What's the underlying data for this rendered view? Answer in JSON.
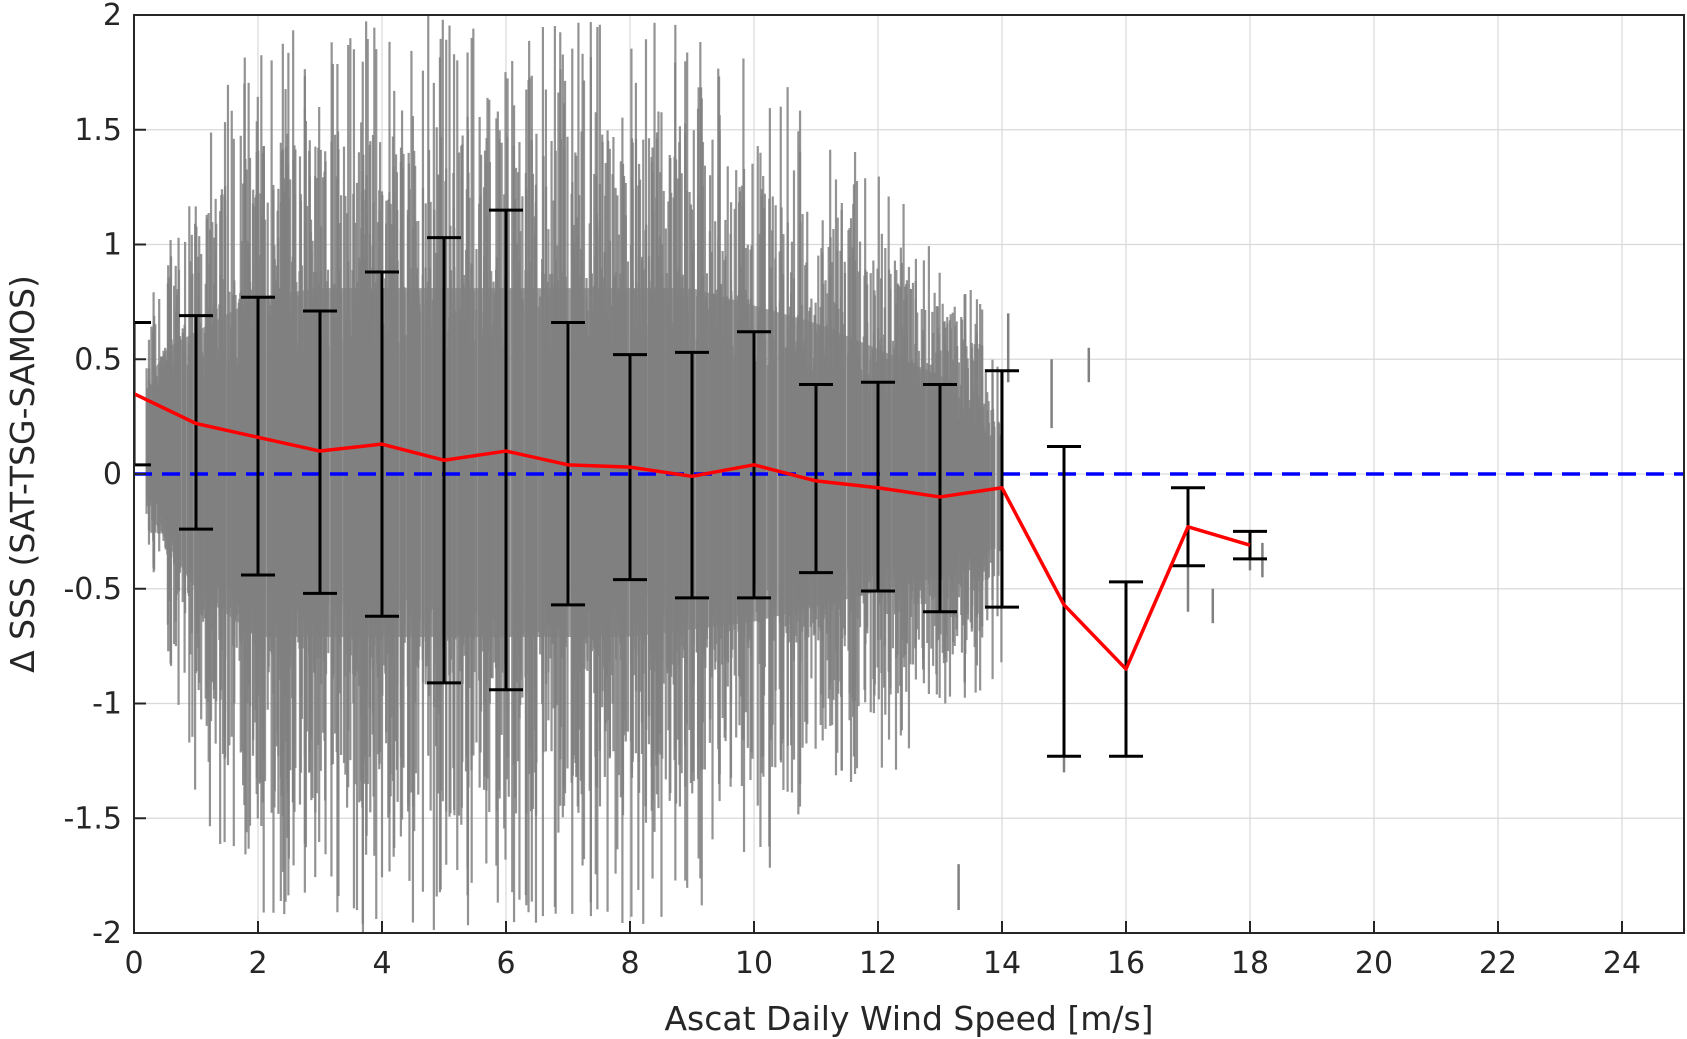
{
  "chart_data": {
    "type": "scatter",
    "title": "",
    "xlabel": "Ascat Daily Wind Speed [m/s]",
    "ylabel": "Δ SSS (SAT-TSG-SAMOS)",
    "xlim": [
      0,
      25
    ],
    "ylim": [
      -2,
      2
    ],
    "xticks": [
      0,
      2,
      4,
      6,
      8,
      10,
      12,
      14,
      16,
      18,
      20,
      22,
      24
    ],
    "yticks": [
      2,
      1.5,
      1,
      0.5,
      0,
      -0.5,
      -1,
      -1.5,
      -2
    ],
    "grid": true,
    "colors": {
      "scatter": "#808080",
      "mean_line": "#ff0000",
      "zero_line": "#0000ff",
      "error_bars": "#000000",
      "grid": "#d9d9d9",
      "axes": "#262626"
    },
    "scatter_envelope": [
      {
        "x": 0.2,
        "low": -0.3,
        "high": 0.9
      },
      {
        "x": 0.5,
        "low": -0.7,
        "high": 1.3
      },
      {
        "x": 1,
        "low": -1.4,
        "high": 1.5
      },
      {
        "x": 2,
        "low": -2.0,
        "high": 1.9
      },
      {
        "x": 3,
        "low": -2.0,
        "high": 2.0
      },
      {
        "x": 4,
        "low": -2.0,
        "high": 2.0
      },
      {
        "x": 5,
        "low": -2.0,
        "high": 2.0
      },
      {
        "x": 6,
        "low": -2.0,
        "high": 2.0
      },
      {
        "x": 7,
        "low": -2.0,
        "high": 2.0
      },
      {
        "x": 8,
        "low": -2.0,
        "high": 2.0
      },
      {
        "x": 9,
        "low": -1.9,
        "high": 2.0
      },
      {
        "x": 10,
        "low": -1.8,
        "high": 1.8
      },
      {
        "x": 11,
        "low": -1.6,
        "high": 1.6
      },
      {
        "x": 12,
        "low": -1.4,
        "high": 1.3
      },
      {
        "x": 13,
        "low": -1.2,
        "high": 1.0
      },
      {
        "x": 13.5,
        "low": -1.1,
        "high": 0.8
      },
      {
        "x": 14,
        "low": -1.0,
        "high": 0.6
      }
    ],
    "scatter_outliers": [
      {
        "x": 14.1,
        "low": 0.4,
        "high": 0.7
      },
      {
        "x": 14.8,
        "low": 0.2,
        "high": 0.5
      },
      {
        "x": 15,
        "low": -1.3,
        "high": 0.1
      },
      {
        "x": 15.4,
        "low": 0.4,
        "high": 0.55
      },
      {
        "x": 16,
        "low": -1.2,
        "high": -0.5
      },
      {
        "x": 17,
        "low": -0.6,
        "high": -0.1
      },
      {
        "x": 17.4,
        "low": -0.65,
        "high": -0.5
      },
      {
        "x": 18,
        "low": -0.42,
        "high": -0.28
      },
      {
        "x": 18.2,
        "low": -0.45,
        "high": -0.3
      },
      {
        "x": 13.3,
        "low": -1.9,
        "high": -1.7
      }
    ],
    "series": [
      {
        "type": "line",
        "x": [
          0,
          1,
          2,
          3,
          4,
          5,
          6,
          7,
          8,
          9,
          10,
          11,
          12,
          13,
          14,
          15,
          16,
          17,
          18
        ],
        "values": [
          0.35,
          0.22,
          0.16,
          0.1,
          0.13,
          0.06,
          0.1,
          0.04,
          0.03,
          -0.01,
          0.04,
          -0.03,
          -0.06,
          -0.1,
          -0.06,
          -0.57,
          -0.85,
          -0.23,
          -0.31
        ]
      },
      {
        "type": "errorbar",
        "x": [
          0,
          1,
          2,
          3,
          4,
          5,
          6,
          7,
          8,
          9,
          10,
          11,
          12,
          13,
          14,
          15,
          16,
          17,
          18
        ],
        "lower": [
          0.04,
          -0.24,
          -0.44,
          -0.52,
          -0.62,
          -0.91,
          -0.94,
          -0.57,
          -0.46,
          -0.54,
          -0.54,
          -0.43,
          -0.51,
          -0.6,
          -0.58,
          -1.23,
          -1.23,
          -0.4,
          -0.37
        ],
        "upper": [
          0.66,
          0.69,
          0.77,
          0.71,
          0.88,
          1.03,
          1.15,
          0.66,
          0.52,
          0.53,
          0.62,
          0.39,
          0.4,
          0.39,
          0.45,
          0.12,
          -0.47,
          -0.06,
          -0.25
        ]
      },
      {
        "type": "hline",
        "values": [
          0
        ]
      }
    ]
  }
}
